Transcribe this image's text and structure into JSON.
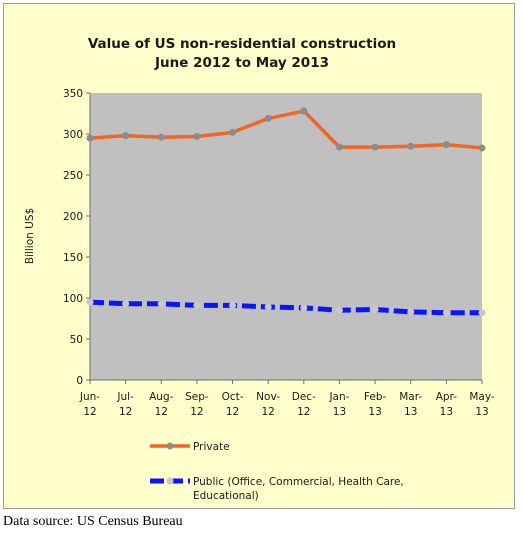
{
  "chart_data": {
    "type": "line",
    "title": "Value of US non-residential construction",
    "subtitle": "June 2012 to May 2013",
    "ylabel": "Billion US$",
    "xlabel": "",
    "ylim": [
      0,
      350
    ],
    "yticks": [
      0,
      50,
      100,
      150,
      200,
      250,
      300,
      350
    ],
    "grid": false,
    "legend_position": "bottom",
    "categories": [
      [
        "Jun-",
        "12"
      ],
      [
        "Jul-",
        "12"
      ],
      [
        "Aug-",
        "12"
      ],
      [
        "Sep-",
        "12"
      ],
      [
        "Oct-",
        "12"
      ],
      [
        "Nov-",
        "12"
      ],
      [
        "Dec-",
        "12"
      ],
      [
        "Jan-",
        "13"
      ],
      [
        "Feb-",
        "13"
      ],
      [
        "Mar-",
        "13"
      ],
      [
        "Apr-",
        "13"
      ],
      [
        "May-",
        "13"
      ]
    ],
    "series": [
      {
        "name": "Private",
        "color": "#f26522",
        "marker_color": "#8c8c8c",
        "dashed": false,
        "values": [
          295,
          298,
          296,
          297,
          302,
          319,
          328,
          284,
          284,
          285,
          287,
          283
        ]
      },
      {
        "name": "Public (Office, Commercial, Health Care,",
        "name_line2": "Educational)",
        "color": "#0a14ff",
        "marker_color": "#c8c8c8",
        "dashed": true,
        "values": [
          95,
          93,
          93,
          91,
          91,
          89,
          88,
          85,
          86,
          83,
          82,
          82
        ]
      }
    ],
    "plot_background": "#c0c0c0",
    "frame_background": "#ffffcc"
  },
  "footer": {
    "data_source": "Data source: US Census Bureau"
  }
}
